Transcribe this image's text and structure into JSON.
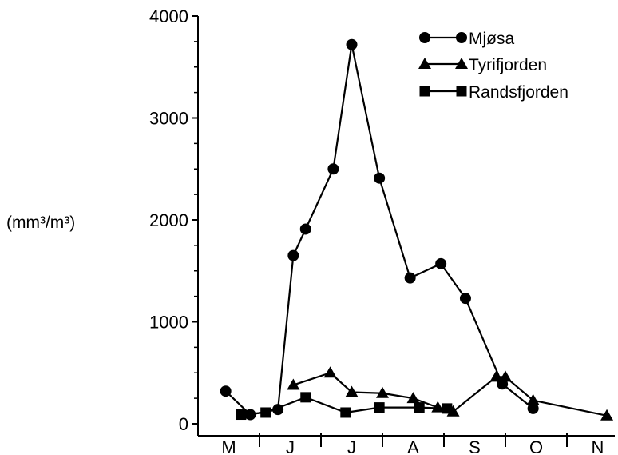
{
  "chart_data": {
    "type": "line",
    "ylabel": "(mm³/m³)",
    "xlabel": "",
    "ylim": [
      0,
      4000
    ],
    "yticks": [
      "0",
      "1000",
      "2000",
      "3000",
      "4000"
    ],
    "month_labels": [
      "M",
      "J",
      "J",
      "A",
      "S",
      "O",
      "N"
    ],
    "legend_position": "top-right",
    "series": [
      {
        "name": "Mjøsa",
        "marker": "circle",
        "x": [
          0.45,
          0.85,
          1.3,
          1.55,
          1.75,
          2.2,
          2.5,
          2.95,
          3.45,
          3.95,
          4.35,
          4.95,
          5.45
        ],
        "values": [
          320,
          90,
          140,
          1650,
          1910,
          2500,
          3720,
          2410,
          1430,
          1570,
          1230,
          390,
          150
        ]
      },
      {
        "name": "Tyrifjorden",
        "marker": "triangle",
        "x": [
          1.55,
          2.15,
          2.5,
          3.0,
          3.5,
          3.9,
          4.15,
          4.85,
          5.0,
          5.45,
          6.65
        ],
        "values": [
          380,
          500,
          310,
          300,
          250,
          160,
          120,
          460,
          460,
          230,
          80
        ]
      },
      {
        "name": "Randsfjorden",
        "marker": "square",
        "x": [
          0.7,
          1.1,
          1.75,
          2.4,
          2.95,
          3.6,
          4.05
        ],
        "values": [
          90,
          110,
          260,
          110,
          160,
          160,
          150
        ]
      }
    ]
  },
  "colors": {
    "ink": "#000000",
    "background": "#ffffff"
  }
}
